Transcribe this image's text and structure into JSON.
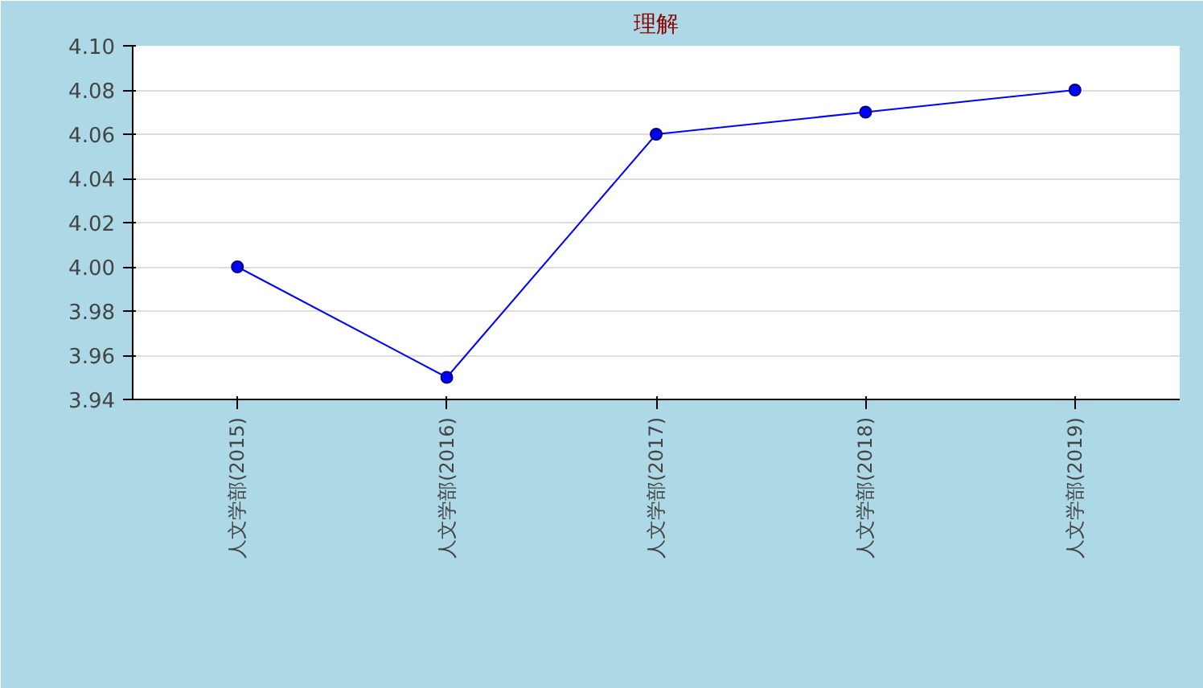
{
  "chart_data": {
    "type": "line",
    "title": "理解",
    "categories": [
      "人文学部(2015)",
      "人文学部(2016)",
      "人文学部(2017)",
      "人文学部(2018)",
      "人文学部(2019)"
    ],
    "series": [
      {
        "color": "#0000ff",
        "values": [
          4.0,
          3.95,
          4.06,
          4.07,
          4.08
        ]
      }
    ],
    "ylim": [
      3.94,
      4.1
    ],
    "yticks": [
      {
        "value": 3.94,
        "label": "3.94"
      },
      {
        "value": 3.96,
        "label": "3.96"
      },
      {
        "value": 3.98,
        "label": "3.98"
      },
      {
        "value": 4.0,
        "label": "4.00"
      },
      {
        "value": 4.02,
        "label": "4.02"
      },
      {
        "value": 4.04,
        "label": "4.04"
      },
      {
        "value": 4.06,
        "label": "4.06"
      },
      {
        "value": 4.08,
        "label": "4.08"
      },
      {
        "value": 4.1,
        "label": "4.10"
      }
    ],
    "grid": "y",
    "marker": "circle",
    "line_style": "solid"
  }
}
